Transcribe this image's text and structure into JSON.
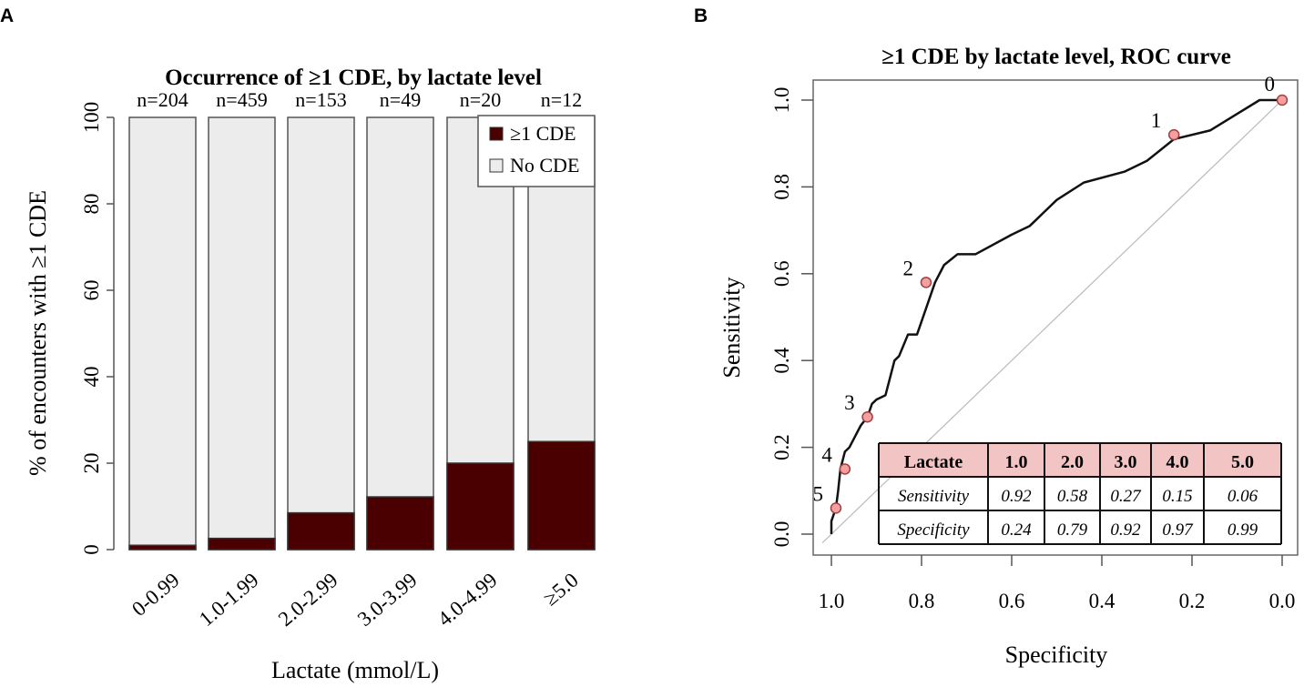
{
  "chart_data": [
    {
      "panel": "A",
      "type": "bar",
      "stacked": true,
      "title": "Occurrence of  ≥1 CDE, by lactate level",
      "xlabel": "Lactate (mmol/L)",
      "ylabel": "% of encounters with ≥1 CDE",
      "ylim": [
        0,
        100
      ],
      "yticks": [
        "0",
        "20",
        "40",
        "60",
        "80",
        "100"
      ],
      "categories": [
        "0-0.99",
        "1.0-1.99",
        "2.0-2.99",
        "3.0-3.99",
        "4.0-4.99",
        "≥5.0"
      ],
      "n_labels": [
        "n=204",
        "n=459",
        "n=153",
        "n=49",
        "n=20",
        "n=12"
      ],
      "series": [
        {
          "name": "≥1 CDE",
          "color": "#4a0000",
          "values": [
            1.0,
            2.6,
            8.5,
            12.2,
            20.0,
            25.0
          ]
        },
        {
          "name": "No CDE",
          "color": "#ececec",
          "values": [
            99.0,
            97.4,
            91.5,
            87.8,
            80.0,
            75.0
          ]
        }
      ],
      "legend": {
        "placement": "top-right",
        "items": [
          "≥1 CDE",
          "No CDE"
        ]
      }
    },
    {
      "panel": "B",
      "type": "line",
      "title": "≥1 CDE by lactate level, ROC curve",
      "xlabel": "Specificity",
      "ylabel": "Sensitivity",
      "xlim": [
        1.0,
        0.0
      ],
      "ylim": [
        0.0,
        1.0
      ],
      "xticks": [
        "1.0",
        "0.8",
        "0.6",
        "0.4",
        "0.2",
        "0.0"
      ],
      "yticks": [
        "0.0",
        "0.2",
        "0.4",
        "0.6",
        "0.8",
        "1.0"
      ],
      "curve": [
        [
          1.0,
          0.0
        ],
        [
          1.0,
          0.03
        ],
        [
          0.99,
          0.06
        ],
        [
          0.985,
          0.1
        ],
        [
          0.98,
          0.15
        ],
        [
          0.975,
          0.17
        ],
        [
          0.97,
          0.19
        ],
        [
          0.96,
          0.2
        ],
        [
          0.95,
          0.22
        ],
        [
          0.935,
          0.25
        ],
        [
          0.92,
          0.27
        ],
        [
          0.91,
          0.3
        ],
        [
          0.9,
          0.31
        ],
        [
          0.88,
          0.32
        ],
        [
          0.87,
          0.36
        ],
        [
          0.86,
          0.4
        ],
        [
          0.85,
          0.41
        ],
        [
          0.83,
          0.46
        ],
        [
          0.81,
          0.46
        ],
        [
          0.79,
          0.52
        ],
        [
          0.77,
          0.58
        ],
        [
          0.75,
          0.62
        ],
        [
          0.72,
          0.645
        ],
        [
          0.68,
          0.645
        ],
        [
          0.6,
          0.69
        ],
        [
          0.56,
          0.71
        ],
        [
          0.5,
          0.77
        ],
        [
          0.44,
          0.81
        ],
        [
          0.35,
          0.835
        ],
        [
          0.3,
          0.86
        ],
        [
          0.24,
          0.91
        ],
        [
          0.16,
          0.93
        ],
        [
          0.05,
          1.0
        ],
        [
          0.0,
          1.0
        ]
      ],
      "cutoff_points": [
        {
          "label": "0",
          "specificity": 0.0,
          "sensitivity": 1.0
        },
        {
          "label": "1",
          "specificity": 0.24,
          "sensitivity": 0.92
        },
        {
          "label": "2",
          "specificity": 0.79,
          "sensitivity": 0.58
        },
        {
          "label": "3",
          "specificity": 0.92,
          "sensitivity": 0.27
        },
        {
          "label": "4",
          "specificity": 0.97,
          "sensitivity": 0.15
        },
        {
          "label": "5",
          "specificity": 0.99,
          "sensitivity": 0.06
        }
      ],
      "point_color": "#f4a0a0",
      "reference_line": "diagonal",
      "table": {
        "header": [
          "Lactate",
          "1.0",
          "2.0",
          "3.0",
          "4.0",
          "5.0"
        ],
        "rows": [
          [
            "Sensitivity",
            "0.92",
            "0.58",
            "0.27",
            "0.15",
            "0.06"
          ],
          [
            "Specificity",
            "0.24",
            "0.79",
            "0.92",
            "0.97",
            "0.99"
          ]
        ],
        "header_color": "#f2c4c4"
      }
    }
  ],
  "panel_labels": [
    "A",
    "B"
  ]
}
